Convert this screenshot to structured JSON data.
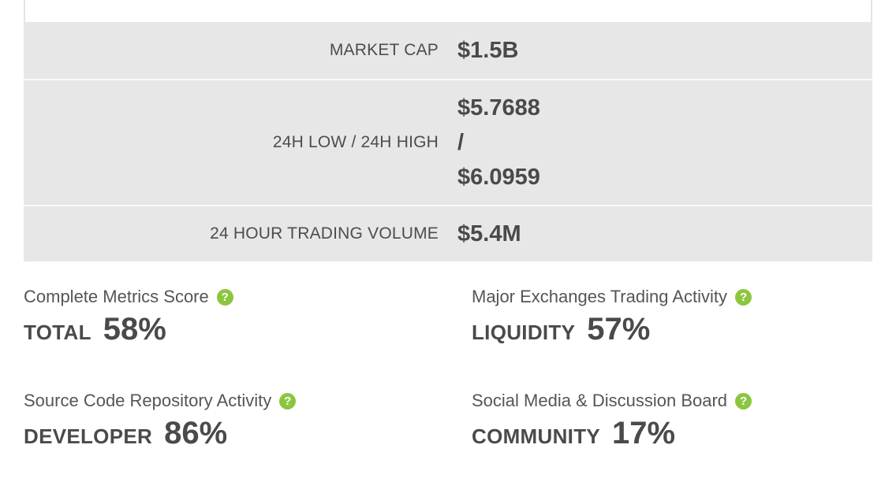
{
  "stats": {
    "market_cap": {
      "label": "MARKET CAP",
      "value": "$1.5B"
    },
    "range_24h": {
      "label": "24H LOW / 24H HIGH",
      "low": "$5.7688",
      "separator": "/",
      "high": "$6.0959"
    },
    "volume_24h": {
      "label": "24 HOUR TRADING VOLUME",
      "value": "$5.4M"
    }
  },
  "metrics": {
    "total": {
      "description": "Complete Metrics Score",
      "name": "TOTAL",
      "percent": "58%"
    },
    "liquidity": {
      "description": "Major Exchanges Trading Activity",
      "name": "LIQUIDITY",
      "percent": "57%"
    },
    "developer": {
      "description": "Source Code Repository Activity",
      "name": "DEVELOPER",
      "percent": "86%"
    },
    "community": {
      "description": "Social Media & Discussion Board",
      "name": "COMMUNITY",
      "percent": "17%"
    }
  },
  "icons": {
    "help": "question-circle-icon",
    "help_glyph": "?"
  },
  "colors": {
    "accent_green": "#8cc63f",
    "row_background": "#e7e7e7",
    "text": "#4a4a4a"
  }
}
